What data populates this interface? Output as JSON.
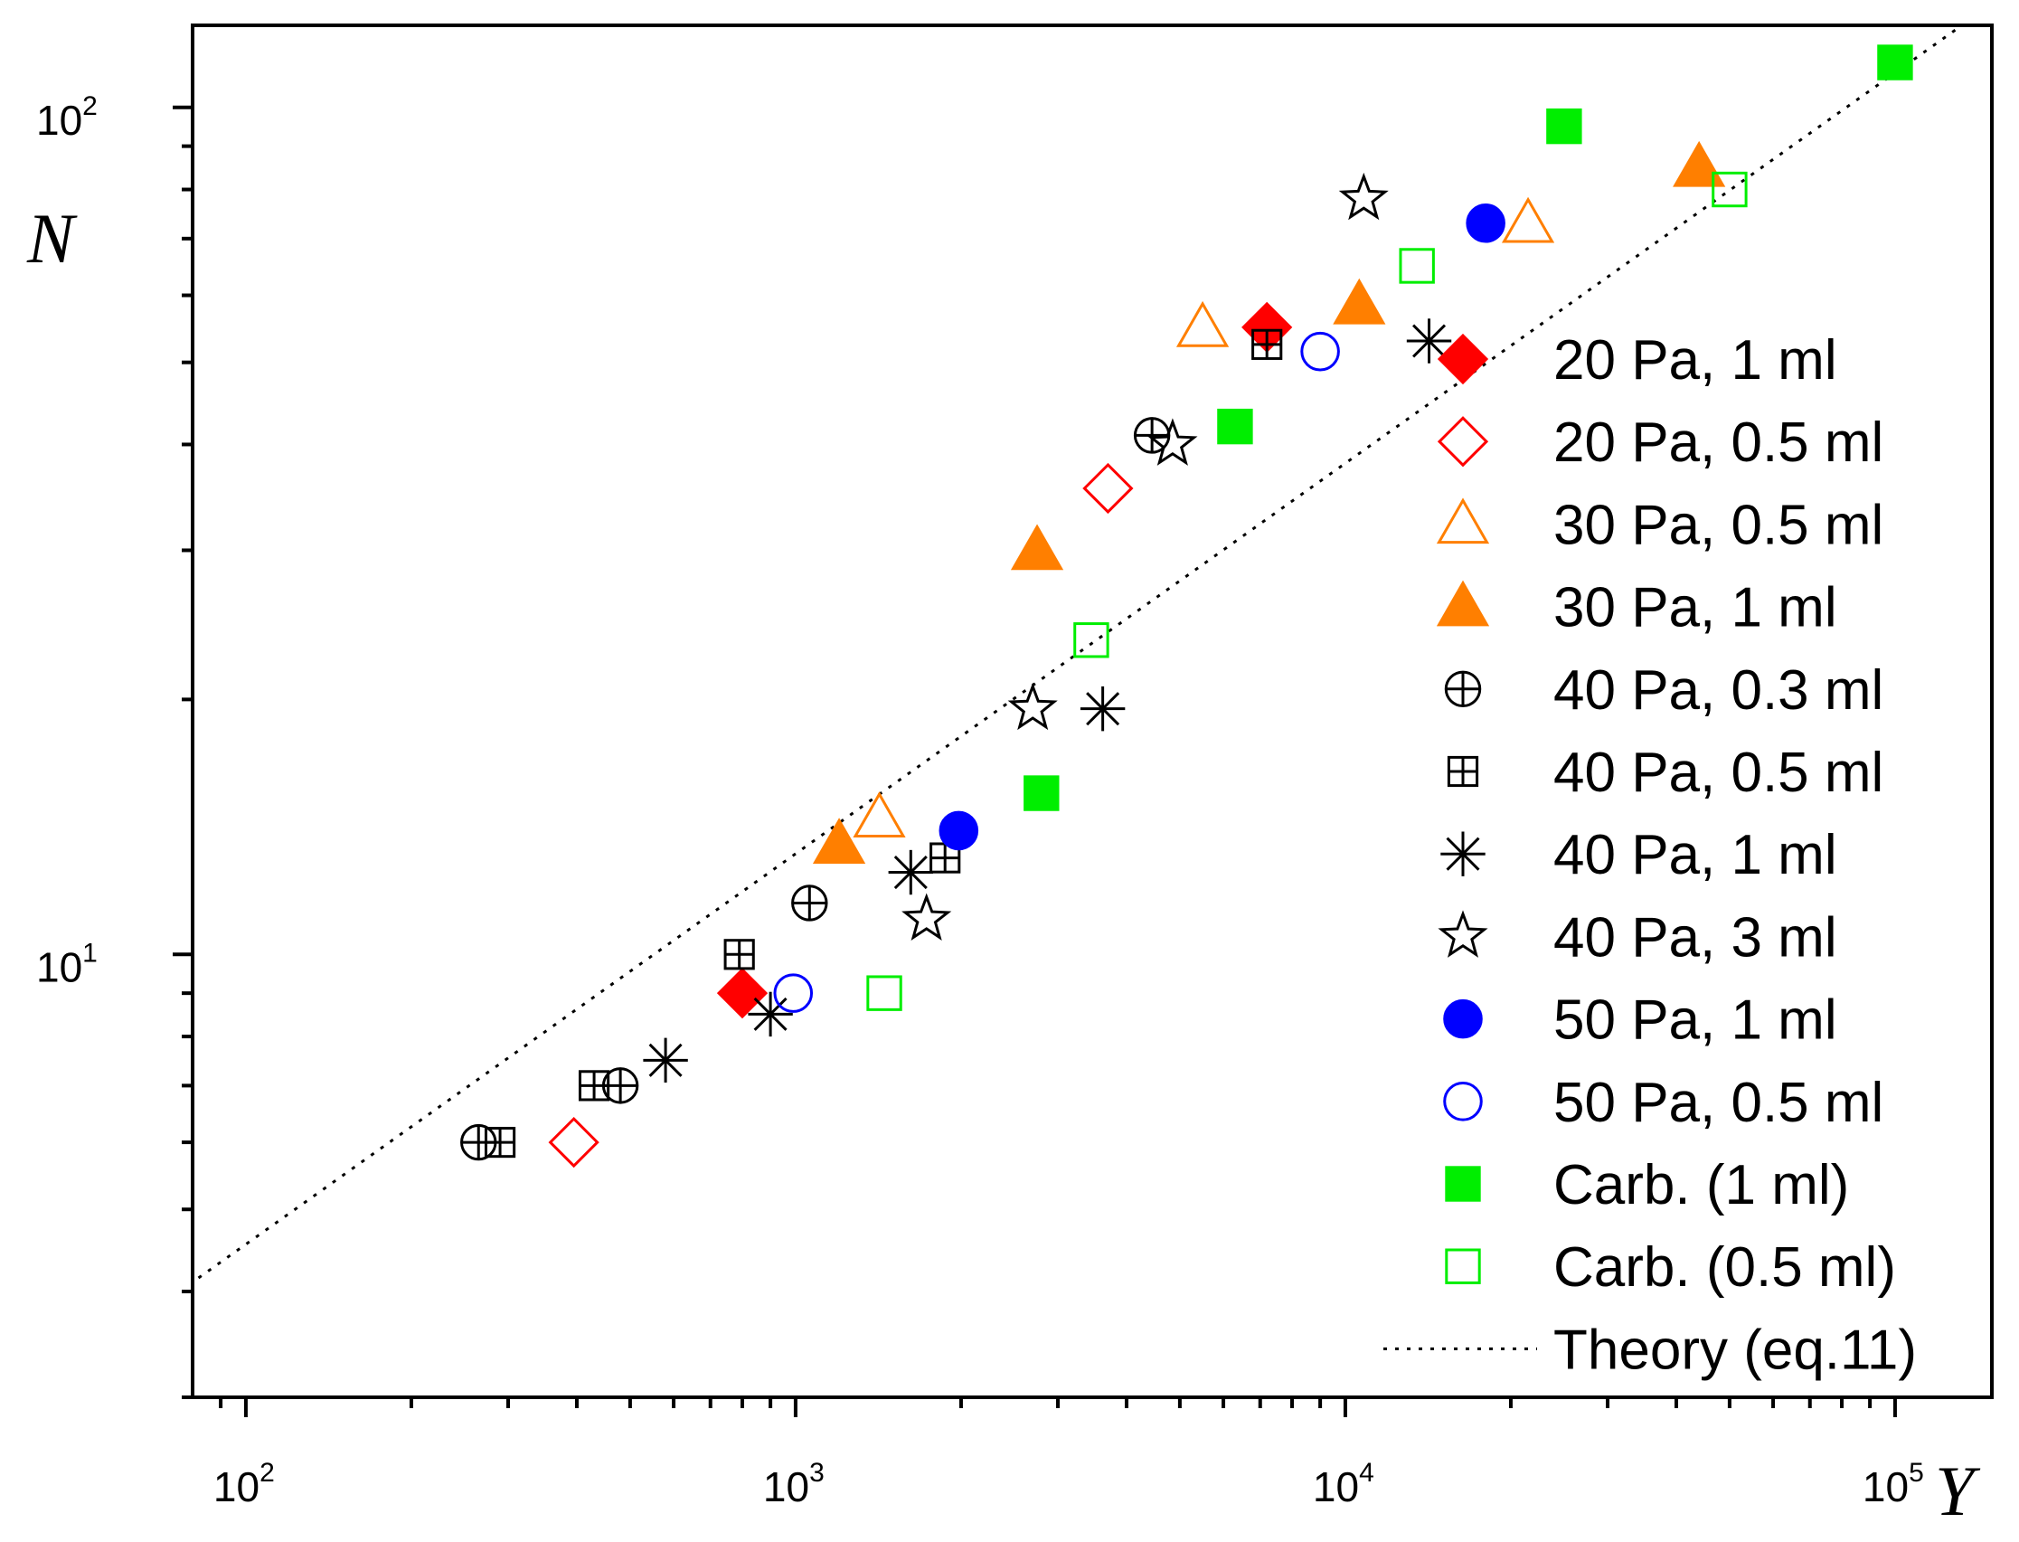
{
  "chart_data": {
    "type": "scatter",
    "xscale": "log",
    "yscale": "log",
    "xlabel": "Y",
    "ylabel": "N",
    "xlim": [
      80,
      150000
    ],
    "ylim": [
      3.0,
      125
    ],
    "x_ticks": [
      {
        "base": "10",
        "exp": "2"
      },
      {
        "base": "10",
        "exp": "3"
      },
      {
        "base": "10",
        "exp": "4"
      },
      {
        "base": "10",
        "exp": "5"
      }
    ],
    "y_ticks": [
      {
        "base": "10",
        "exp": "1"
      },
      {
        "base": "10",
        "exp": "2"
      }
    ],
    "grid": false,
    "legend_position": "right",
    "series": [
      {
        "name": "20 Pa, 1 ml",
        "marker": "diamond",
        "filled": true,
        "color": "#ff0000",
        "points": [
          [
            800,
            9.0
          ],
          [
            7200,
            55.0
          ]
        ]
      },
      {
        "name": "20 Pa, 0.5 ml",
        "marker": "diamond",
        "filled": false,
        "color": "#ff0000",
        "points": [
          [
            395,
            6.0
          ],
          [
            3700,
            35.5
          ]
        ]
      },
      {
        "name": "30 Pa, 0.5 ml",
        "marker": "triangle",
        "filled": false,
        "color": "#ff7f00",
        "points": [
          [
            1420,
            14.5
          ],
          [
            5500,
            55.0
          ],
          [
            21500,
            73.0
          ]
        ]
      },
      {
        "name": "30 Pa, 1 ml",
        "marker": "triangle",
        "filled": true,
        "color": "#ff7f00",
        "points": [
          [
            1200,
            13.5
          ],
          [
            2750,
            30.0
          ],
          [
            10600,
            58.5
          ],
          [
            44000,
            85.0
          ]
        ]
      },
      {
        "name": "40 Pa, 0.3 ml",
        "marker": "circle-plus",
        "filled": false,
        "color": "#000000",
        "points": [
          [
            265,
            6.0
          ],
          [
            480,
            7.0
          ],
          [
            1060,
            11.5
          ],
          [
            4450,
            41.0
          ]
        ]
      },
      {
        "name": "40 Pa, 0.5 ml",
        "marker": "square-plus",
        "filled": false,
        "color": "#000000",
        "points": [
          [
            290,
            6.0
          ],
          [
            430,
            7.0
          ],
          [
            790,
            10.0
          ],
          [
            1870,
            13.0
          ],
          [
            7200,
            52.5
          ]
        ]
      },
      {
        "name": "40 Pa, 1 ml",
        "marker": "asterisk",
        "filled": false,
        "color": "#000000",
        "points": [
          [
            580,
            7.5
          ],
          [
            900,
            8.5
          ],
          [
            1620,
            12.5
          ],
          [
            3620,
            19.5
          ],
          [
            14200,
            53.0
          ]
        ]
      },
      {
        "name": "40 Pa, 3 ml",
        "marker": "star",
        "filled": false,
        "color": "#000000",
        "points": [
          [
            1730,
            11.0
          ],
          [
            2700,
            19.5
          ],
          [
            4850,
            40.0
          ],
          [
            10800,
            78.0
          ]
        ]
      },
      {
        "name": "50 Pa, 1 ml",
        "marker": "circle",
        "filled": true,
        "color": "#0000ff",
        "points": [
          [
            1980,
            14.0
          ],
          [
            18000,
            73.0
          ]
        ]
      },
      {
        "name": "50 Pa, 0.5 ml",
        "marker": "circle",
        "filled": false,
        "color": "#0000ff",
        "points": [
          [
            990,
            9.0
          ],
          [
            9000,
            51.5
          ]
        ]
      },
      {
        "name": "Carb. (1 ml)",
        "marker": "square",
        "filled": true,
        "color": "#00ee00",
        "points": [
          [
            2800,
            15.5
          ],
          [
            6300,
            42.0
          ],
          [
            25000,
            95.0
          ],
          [
            100000,
            113.0
          ]
        ]
      },
      {
        "name": "Carb. (0.5 ml)",
        "marker": "square",
        "filled": false,
        "color": "#00ee00",
        "points": [
          [
            1450,
            9.0
          ],
          [
            3450,
            23.5
          ],
          [
            13500,
            65.0
          ],
          [
            50000,
            80.0
          ]
        ]
      }
    ],
    "theory": {
      "name": "Theory (eq.11)",
      "style": "dotted",
      "color": "#000000",
      "points": [
        [
          82,
          4.15
        ],
        [
          130000,
          124
        ]
      ]
    }
  }
}
